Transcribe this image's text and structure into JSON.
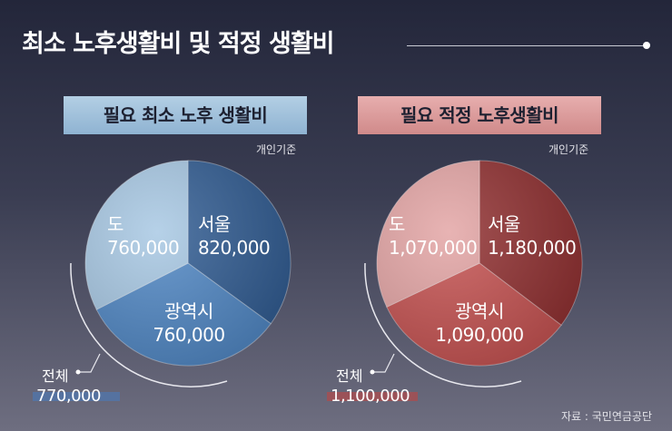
{
  "title": "최소 노후생활비 및 적정 생활비",
  "source": "자료 : 국민연금공단",
  "chart_data": [
    {
      "type": "pie",
      "title": "필요 최소 노후 생활비",
      "unit_note": "개인기준",
      "total_label": "전체",
      "total_value": "770,000",
      "categories": [
        "서울",
        "광역시",
        "도"
      ],
      "values": [
        820000,
        760000,
        760000
      ],
      "value_labels": [
        "820,000",
        "760,000",
        "760,000"
      ],
      "colors": [
        "#2e5a91",
        "#4e86c4",
        "#a6c7e3"
      ]
    },
    {
      "type": "pie",
      "title": "필요 적정 노후생활비",
      "unit_note": "개인기준",
      "total_label": "전체",
      "total_value": "1,100,000",
      "categories": [
        "서울",
        "광역시",
        "도"
      ],
      "values": [
        1180000,
        1090000,
        1070000
      ],
      "value_labels": [
        "1,180,000",
        "1,090,000",
        "1,070,000"
      ],
      "colors": [
        "#8f2d2e",
        "#c5504f",
        "#e3a3a3"
      ]
    }
  ]
}
